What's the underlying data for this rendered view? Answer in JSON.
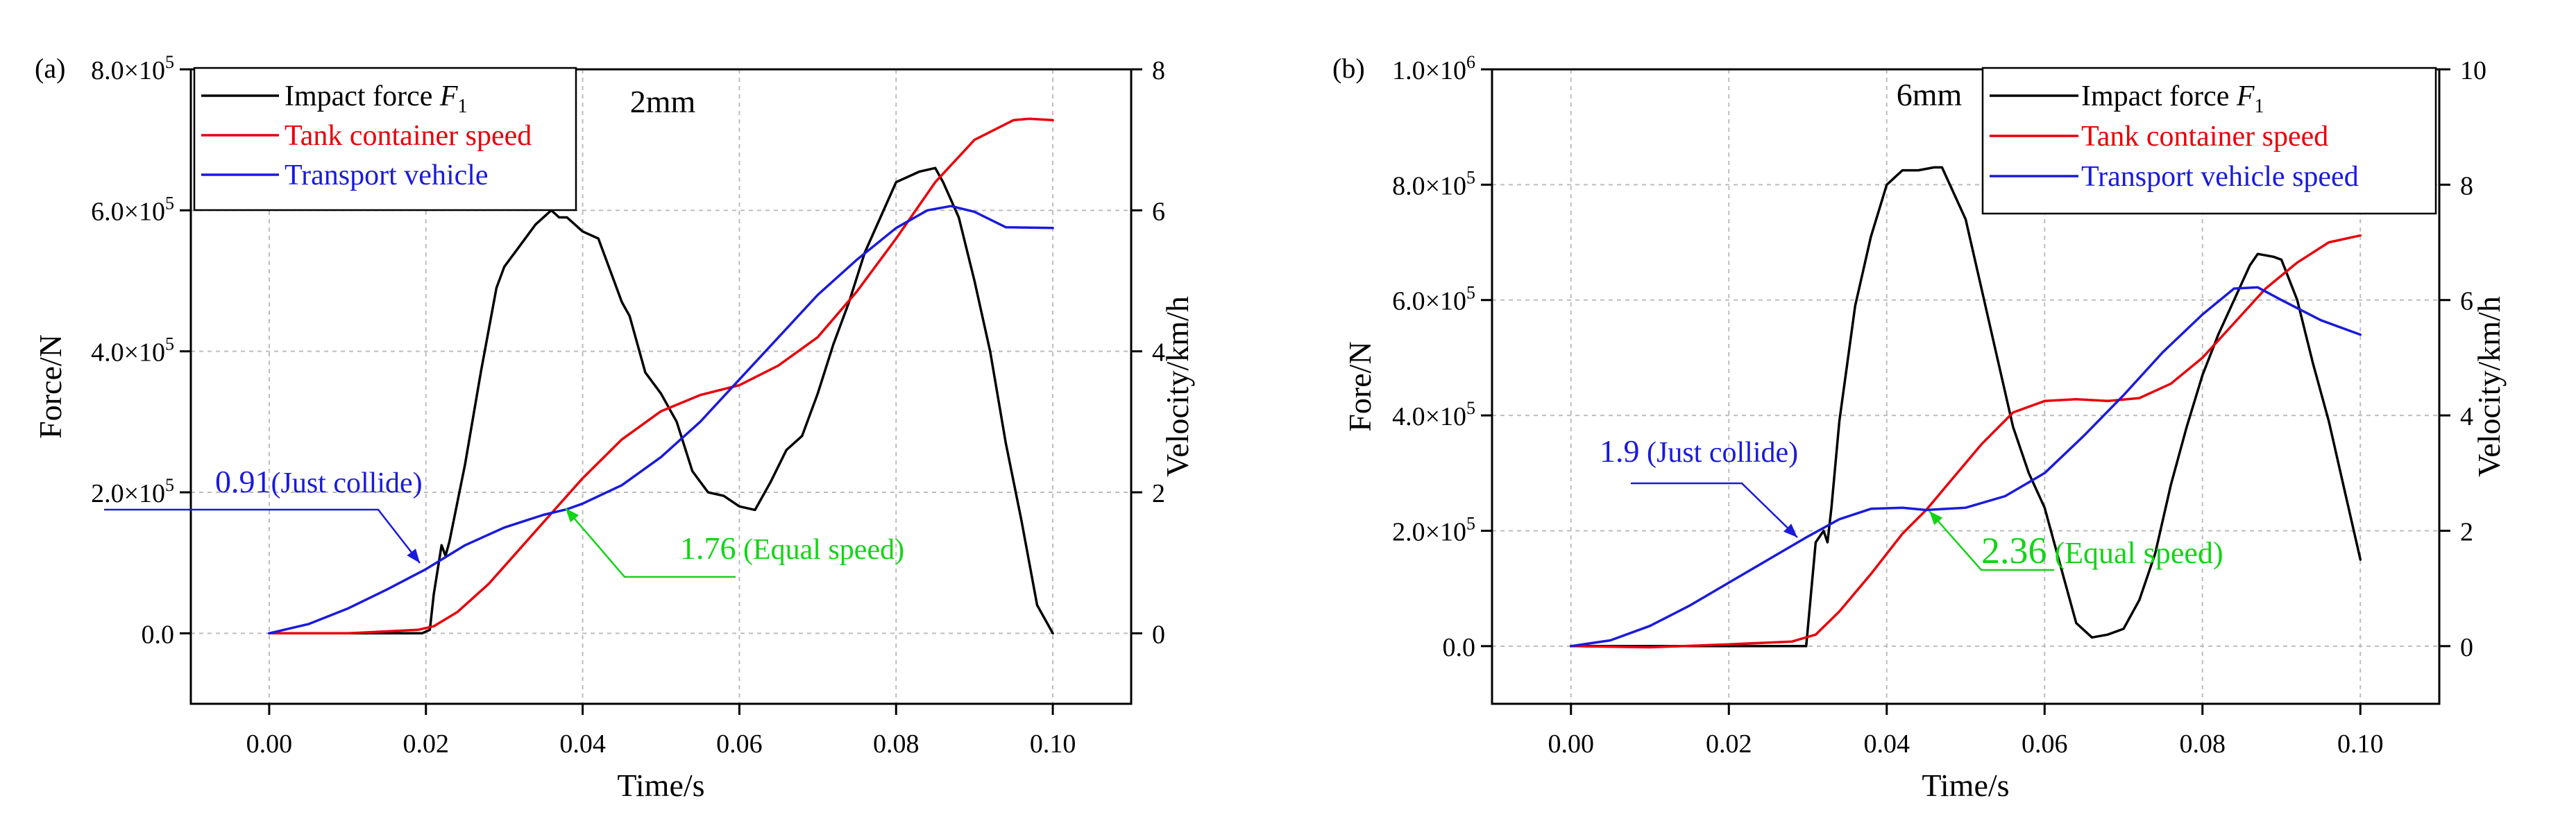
{
  "chart_data": [
    {
      "panel_label": "(a)",
      "type": "line",
      "title": "2mm",
      "xlabel": "Time/s",
      "ylabel_left": "Force/N",
      "ylabel_right": "Velocity/km/h",
      "xlim": [
        -0.01,
        0.11
      ],
      "ylim_left": [
        -100000,
        800000
      ],
      "ylim_right": [
        -1,
        8
      ],
      "grid": true,
      "x_ticks": [
        0.0,
        0.02,
        0.04,
        0.06,
        0.08,
        0.1
      ],
      "x_tick_labels": [
        "0.00",
        "0.02",
        "0.04",
        "0.06",
        "0.08",
        "0.10"
      ],
      "y_left_ticks": [
        0,
        200000,
        400000,
        600000,
        800000
      ],
      "y_left_tick_labels": [
        {
          "mantissa": "0.0",
          "exp": ""
        },
        {
          "mantissa": "2.0×10",
          "exp": "5"
        },
        {
          "mantissa": "4.0×10",
          "exp": "5"
        },
        {
          "mantissa": "6.0×10",
          "exp": "5"
        },
        {
          "mantissa": "8.0×10",
          "exp": "5"
        }
      ],
      "y_right_ticks": [
        0,
        2,
        4,
        6,
        8
      ],
      "y_right_tick_labels": [
        "0",
        "2",
        "4",
        "6",
        "8"
      ],
      "legend": [
        {
          "name": "Impact force ",
          "sym": "F",
          "sub": "1",
          "color": "#000000"
        },
        {
          "name": "Tank container speed",
          "sym": "",
          "sub": "",
          "color": "#e8000b"
        },
        {
          "name": "Transport vehicle",
          "sym": "",
          "sub": "",
          "color": "#1a1adc"
        }
      ],
      "legend_position": "top-left",
      "title_position": "top-center",
      "series": [
        {
          "name": "Impact force F1",
          "axis": "left",
          "color": "#000000",
          "x": [
            0.0,
            0.0195,
            0.0205,
            0.021,
            0.022,
            0.0225,
            0.023,
            0.025,
            0.027,
            0.029,
            0.03,
            0.032,
            0.034,
            0.036,
            0.037,
            0.038,
            0.04,
            0.042,
            0.044,
            0.045,
            0.046,
            0.048,
            0.05,
            0.052,
            0.054,
            0.056,
            0.058,
            0.06,
            0.062,
            0.064,
            0.066,
            0.068,
            0.07,
            0.072,
            0.074,
            0.076,
            0.078,
            0.08,
            0.082,
            0.083,
            0.085,
            0.086,
            0.088,
            0.09,
            0.092,
            0.094,
            0.096,
            0.098,
            0.1
          ],
          "y": [
            0,
            0,
            5000,
            55000,
            125000,
            110000,
            130000,
            240000,
            370000,
            490000,
            520000,
            550000,
            580000,
            600000,
            590000,
            590000,
            570000,
            560000,
            500000,
            470000,
            450000,
            370000,
            340000,
            300000,
            230000,
            200000,
            195000,
            180000,
            175000,
            215000,
            260000,
            280000,
            340000,
            410000,
            470000,
            540000,
            590000,
            640000,
            650000,
            655000,
            660000,
            640000,
            590000,
            500000,
            400000,
            270000,
            160000,
            40000,
            0
          ]
        },
        {
          "name": "Tank container speed",
          "axis": "right",
          "color": "#e8000b",
          "x": [
            0.0,
            0.01,
            0.019,
            0.021,
            0.024,
            0.028,
            0.032,
            0.036,
            0.04,
            0.045,
            0.05,
            0.055,
            0.06,
            0.065,
            0.07,
            0.075,
            0.08,
            0.085,
            0.09,
            0.095,
            0.097,
            0.1
          ],
          "y": [
            0,
            0.0,
            0.05,
            0.1,
            0.3,
            0.7,
            1.2,
            1.7,
            2.2,
            2.75,
            3.15,
            3.38,
            3.52,
            3.8,
            4.2,
            4.85,
            5.6,
            6.4,
            7.0,
            7.28,
            7.3,
            7.28
          ]
        },
        {
          "name": "Transport vehicle",
          "axis": "right",
          "color": "#1a1adc",
          "x": [
            0.0,
            0.005,
            0.01,
            0.015,
            0.02,
            0.025,
            0.03,
            0.035,
            0.038,
            0.04,
            0.045,
            0.05,
            0.055,
            0.06,
            0.065,
            0.07,
            0.075,
            0.08,
            0.084,
            0.087,
            0.09,
            0.094,
            0.1
          ],
          "y": [
            0,
            0.13,
            0.35,
            0.62,
            0.91,
            1.25,
            1.5,
            1.68,
            1.76,
            1.84,
            2.1,
            2.5,
            3.0,
            3.6,
            4.2,
            4.8,
            5.3,
            5.75,
            6.0,
            6.06,
            5.98,
            5.76,
            5.75
          ]
        }
      ],
      "annotations": [
        {
          "label": "0.91",
          "text": "(Just collide)",
          "color": "#1a1adc",
          "x": 0.02,
          "y": 0.91
        },
        {
          "label": "1.76",
          "text": " (Equal speed)",
          "color": "#13d417",
          "x": 0.038,
          "y": 1.76
        }
      ]
    },
    {
      "panel_label": "(b)",
      "type": "line",
      "title": "6mm",
      "xlabel": "Time/s",
      "ylabel_left": "Fore/N",
      "ylabel_right": "Velocity/km/h",
      "xlim": [
        -0.01,
        0.11
      ],
      "ylim_left": [
        -100000,
        1000000
      ],
      "ylim_right": [
        -1,
        10
      ],
      "grid": true,
      "x_ticks": [
        0.0,
        0.02,
        0.04,
        0.06,
        0.08,
        0.1
      ],
      "x_tick_labels": [
        "0.00",
        "0.02",
        "0.04",
        "0.06",
        "0.08",
        "0.10"
      ],
      "y_left_ticks": [
        0,
        200000,
        400000,
        600000,
        800000,
        1000000
      ],
      "y_left_tick_labels": [
        {
          "mantissa": "0.0",
          "exp": ""
        },
        {
          "mantissa": "2.0×10",
          "exp": "5"
        },
        {
          "mantissa": "4.0×10",
          "exp": "5"
        },
        {
          "mantissa": "6.0×10",
          "exp": "5"
        },
        {
          "mantissa": "8.0×10",
          "exp": "5"
        },
        {
          "mantissa": "1.0×10",
          "exp": "6"
        }
      ],
      "y_right_ticks": [
        0,
        2,
        4,
        6,
        8,
        10
      ],
      "y_right_tick_labels": [
        "0",
        "2",
        "4",
        "6",
        "8",
        "10"
      ],
      "legend": [
        {
          "name": "Impact force ",
          "sym": "F",
          "sub": "1",
          "color": "#000000"
        },
        {
          "name": "Tank container speed",
          "sym": "",
          "sub": "",
          "color": "#e8000b"
        },
        {
          "name": "Transport vehicle speed",
          "sym": "",
          "sub": "",
          "color": "#1a1adc"
        }
      ],
      "legend_position": "top-right",
      "title_position": "top-center",
      "series": [
        {
          "name": "Impact force F1",
          "axis": "left",
          "color": "#000000",
          "x": [
            0.0,
            0.0298,
            0.03,
            0.031,
            0.032,
            0.0325,
            0.033,
            0.034,
            0.035,
            0.036,
            0.038,
            0.04,
            0.042,
            0.044,
            0.046,
            0.047,
            0.048,
            0.05,
            0.052,
            0.054,
            0.056,
            0.058,
            0.06,
            0.062,
            0.064,
            0.066,
            0.068,
            0.07,
            0.072,
            0.074,
            0.076,
            0.078,
            0.08,
            0.082,
            0.084,
            0.086,
            0.087,
            0.089,
            0.09,
            0.092,
            0.094,
            0.096,
            0.098,
            0.1
          ],
          "y": [
            0,
            0,
            30000,
            180000,
            200000,
            180000,
            240000,
            390000,
            490000,
            590000,
            710000,
            800000,
            825000,
            825000,
            830000,
            830000,
            800000,
            740000,
            620000,
            500000,
            380000,
            300000,
            240000,
            140000,
            40000,
            15000,
            20000,
            30000,
            80000,
            160000,
            280000,
            380000,
            470000,
            540000,
            600000,
            660000,
            680000,
            675000,
            670000,
            600000,
            490000,
            390000,
            270000,
            150000
          ]
        },
        {
          "name": "Tank container speed",
          "axis": "right",
          "color": "#e8000b",
          "x": [
            0.0,
            0.01,
            0.02,
            0.028,
            0.031,
            0.034,
            0.038,
            0.042,
            0.045,
            0.048,
            0.052,
            0.056,
            0.06,
            0.064,
            0.068,
            0.072,
            0.076,
            0.08,
            0.084,
            0.088,
            0.092,
            0.096,
            0.1
          ],
          "y": [
            0,
            -0.02,
            0.03,
            0.08,
            0.2,
            0.6,
            1.25,
            1.95,
            2.36,
            2.85,
            3.5,
            4.05,
            4.25,
            4.28,
            4.25,
            4.3,
            4.55,
            5.0,
            5.6,
            6.2,
            6.65,
            7.0,
            7.12
          ]
        },
        {
          "name": "Transport vehicle speed",
          "axis": "right",
          "color": "#1a1adc",
          "x": [
            0.0,
            0.005,
            0.01,
            0.015,
            0.02,
            0.025,
            0.03,
            0.034,
            0.038,
            0.042,
            0.045,
            0.05,
            0.055,
            0.06,
            0.065,
            0.07,
            0.075,
            0.08,
            0.084,
            0.087,
            0.09,
            0.095,
            0.1
          ],
          "y": [
            0,
            0.1,
            0.35,
            0.7,
            1.1,
            1.5,
            1.9,
            2.2,
            2.38,
            2.4,
            2.36,
            2.4,
            2.6,
            3.0,
            3.65,
            4.35,
            5.1,
            5.75,
            6.2,
            6.22,
            6.0,
            5.65,
            5.4
          ]
        }
      ],
      "annotations": [
        {
          "label": "1.9",
          "text": " (Just collide)",
          "color": "#1a1adc",
          "x": 0.03,
          "y": 1.9
        },
        {
          "label": "2.36",
          "text": " (Equal speed)",
          "color": "#13d417",
          "x": 0.045,
          "y": 2.36
        }
      ]
    }
  ]
}
